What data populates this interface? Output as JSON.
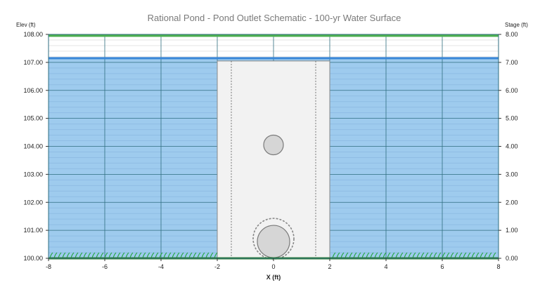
{
  "chart_data": {
    "type": "schematic",
    "title": "Rational Pond - Pond Outlet Schematic - 100-yr Water Surface",
    "xlabel": "X (ft)",
    "ylabel_left": "Elev (ft)",
    "ylabel_right": "Stage (ft)",
    "xlim": [
      -8,
      8
    ],
    "ylim": [
      100,
      108
    ],
    "stage_lim": [
      0,
      8
    ],
    "x_ticks": [
      -8,
      -6,
      -4,
      -2,
      0,
      2,
      4,
      6,
      8
    ],
    "x_tick_labels": [
      "-8",
      "-6",
      "-4",
      "-2",
      "0",
      "2",
      "4",
      "6",
      "8"
    ],
    "y_ticks": [
      100,
      101,
      102,
      103,
      104,
      105,
      106,
      107,
      108
    ],
    "y_tick_labels": [
      "100.00",
      "101.00",
      "102.00",
      "103.00",
      "104.00",
      "105.00",
      "106.00",
      "107.00",
      "108.00"
    ],
    "stage_tick_labels": [
      "0.00",
      "1.00",
      "2.00",
      "3.00",
      "4.00",
      "5.00",
      "6.00",
      "7.00",
      "8.00"
    ],
    "grid": true,
    "water_surface_elev": 107.15,
    "top_of_berm_elev": 107.95,
    "ground_elev": 100.0,
    "outlet_structure": {
      "x_left": -2,
      "x_right": 2,
      "top_elev": 107.05,
      "inner_x": [
        -1.5,
        1.5
      ]
    },
    "orifices": [
      {
        "x": 0,
        "elev": 104.05,
        "diameter": 0.7
      },
      {
        "x": 0,
        "elev": 100.6,
        "diameter": 1.15
      }
    ],
    "dashed_circle": {
      "x": 0,
      "elev": 100.7,
      "diameter": 1.45
    },
    "colors": {
      "water": "#9ecbee",
      "water_surface": "#3a87d8",
      "berm": "#4caf50",
      "ground": "#2e7d32",
      "grass": "#28a745",
      "structure": "#f2f2f2",
      "orifice": "#d6d6d6",
      "grid": "#2f6e80"
    }
  }
}
